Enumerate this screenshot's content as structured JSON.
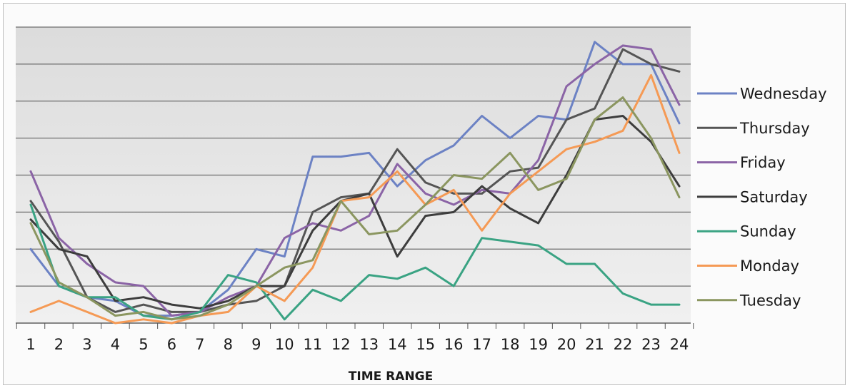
{
  "chart_data": {
    "type": "line",
    "title": "",
    "xlabel": "TIME RANGE",
    "ylabel": "",
    "x": [
      1,
      2,
      3,
      4,
      5,
      6,
      7,
      8,
      9,
      10,
      11,
      12,
      13,
      14,
      15,
      16,
      17,
      18,
      19,
      20,
      21,
      22,
      23,
      24
    ],
    "ylim": [
      0,
      8
    ],
    "grid": true,
    "legend_position": "right",
    "series": [
      {
        "name": "Wednesday",
        "color": "#6c82c4",
        "values": [
          2.0,
          1.0,
          0.7,
          0.6,
          0.2,
          0.2,
          0.3,
          0.9,
          2.0,
          1.8,
          4.5,
          4.5,
          4.6,
          3.7,
          4.4,
          4.8,
          5.6,
          5.0,
          5.6,
          5.5,
          7.6,
          7.0,
          7.0,
          5.4
        ]
      },
      {
        "name": "Thursday",
        "color": "#555555",
        "values": [
          3.3,
          2.2,
          0.7,
          0.3,
          0.5,
          0.3,
          0.3,
          0.5,
          0.6,
          1.0,
          3.0,
          3.4,
          3.5,
          4.7,
          3.8,
          3.5,
          3.5,
          4.1,
          4.2,
          5.5,
          5.8,
          7.4,
          7.0,
          6.8
        ]
      },
      {
        "name": "Friday",
        "color": "#8b64a6",
        "values": [
          4.1,
          2.3,
          1.6,
          1.1,
          1.0,
          0.2,
          0.3,
          0.7,
          1.0,
          2.3,
          2.7,
          2.5,
          2.9,
          4.3,
          3.5,
          3.2,
          3.6,
          3.5,
          4.4,
          6.4,
          7.0,
          7.5,
          7.4,
          5.9
        ]
      },
      {
        "name": "Saturday",
        "color": "#3d3d3d",
        "values": [
          2.8,
          2.0,
          1.8,
          0.6,
          0.7,
          0.5,
          0.4,
          0.6,
          1.0,
          1.0,
          2.5,
          3.3,
          3.5,
          1.8,
          2.9,
          3.0,
          3.7,
          3.1,
          2.7,
          4.0,
          5.5,
          5.6,
          4.9,
          3.7
        ]
      },
      {
        "name": "Sunday",
        "color": "#3aa383",
        "values": [
          3.2,
          1.0,
          0.7,
          0.7,
          0.2,
          0.1,
          0.3,
          1.3,
          1.1,
          0.1,
          0.9,
          0.6,
          1.3,
          1.2,
          1.5,
          1.0,
          2.3,
          2.2,
          2.1,
          1.6,
          1.6,
          0.8,
          0.5,
          0.5
        ]
      },
      {
        "name": "Monday",
        "color": "#f59a55",
        "values": [
          0.3,
          0.6,
          0.3,
          0.0,
          0.1,
          0.0,
          0.2,
          0.3,
          1.0,
          0.6,
          1.5,
          3.3,
          3.4,
          4.1,
          3.2,
          3.6,
          2.5,
          3.5,
          4.1,
          4.7,
          4.9,
          5.2,
          6.7,
          4.6
        ]
      },
      {
        "name": "Tuesday",
        "color": "#8b9660",
        "values": [
          2.7,
          1.1,
          0.7,
          0.2,
          0.3,
          0.1,
          0.2,
          0.5,
          1.0,
          1.5,
          1.7,
          3.3,
          2.4,
          2.5,
          3.2,
          4.0,
          3.9,
          4.6,
          3.6,
          3.9,
          5.5,
          6.1,
          5.0,
          3.4
        ]
      }
    ]
  }
}
